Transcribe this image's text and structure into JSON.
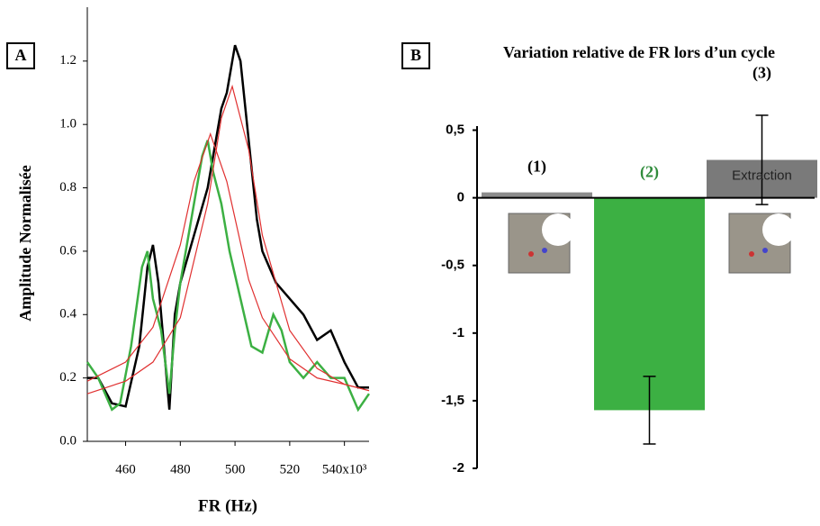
{
  "chart_data": [
    {
      "type": "line",
      "panel": "A",
      "xlabel": "FR (Hz)",
      "ylabel": "Amplitude Normalisée",
      "xlim": [
        446,
        549
      ],
      "ylim": [
        0,
        1.37
      ],
      "xticks": [
        460,
        480,
        500,
        520,
        {
          "value": 540,
          "label": "540x10³"
        }
      ],
      "yticks": [
        {
          "value": 0,
          "label": "0.0"
        },
        0.2,
        0.4,
        0.6,
        0.8,
        {
          "value": 1,
          "label": "1.0"
        },
        1.2
      ],
      "series": [
        {
          "color": "#000000",
          "x": [
            446,
            450,
            455,
            460,
            465,
            468,
            470,
            472,
            474,
            476,
            478,
            480,
            485,
            490,
            493,
            495,
            497,
            500,
            502,
            505,
            508,
            510,
            515,
            520,
            525,
            530,
            535,
            540,
            545,
            549
          ],
          "values": [
            0.2,
            0.2,
            0.12,
            0.11,
            0.3,
            0.55,
            0.62,
            0.5,
            0.3,
            0.1,
            0.4,
            0.5,
            0.65,
            0.8,
            0.95,
            1.05,
            1.1,
            1.25,
            1.2,
            0.95,
            0.7,
            0.6,
            0.5,
            0.45,
            0.4,
            0.32,
            0.35,
            0.25,
            0.17,
            0.17
          ]
        },
        {
          "color": "#3cb043",
          "x": [
            446,
            450,
            455,
            458,
            462,
            466,
            468,
            470,
            473,
            476,
            478,
            480,
            484,
            488,
            490,
            492,
            495,
            498,
            502,
            506,
            510,
            514,
            517,
            520,
            525,
            530,
            535,
            540,
            545,
            549
          ],
          "values": [
            0.25,
            0.2,
            0.1,
            0.12,
            0.3,
            0.55,
            0.6,
            0.45,
            0.35,
            0.15,
            0.35,
            0.5,
            0.7,
            0.9,
            0.95,
            0.85,
            0.75,
            0.6,
            0.45,
            0.3,
            0.28,
            0.4,
            0.35,
            0.25,
            0.2,
            0.25,
            0.2,
            0.2,
            0.1,
            0.15
          ]
        },
        {
          "color": "#e03030",
          "x": [
            446,
            460,
            470,
            480,
            490,
            495,
            499,
            505,
            510,
            520,
            530,
            540,
            549
          ],
          "values": [
            0.15,
            0.19,
            0.25,
            0.39,
            0.75,
            1.02,
            1.12,
            0.92,
            0.65,
            0.35,
            0.23,
            0.18,
            0.16
          ]
        },
        {
          "color": "#e03030",
          "x": [
            446,
            460,
            470,
            480,
            485,
            491,
            497,
            505,
            510,
            520,
            530,
            540,
            549
          ],
          "values": [
            0.19,
            0.25,
            0.36,
            0.62,
            0.82,
            0.97,
            0.82,
            0.51,
            0.39,
            0.26,
            0.2,
            0.18,
            0.16
          ]
        }
      ]
    },
    {
      "type": "bar",
      "panel": "B",
      "title": "Variation relative de FR lors d’un cycle",
      "categories": [
        "(1)",
        "(2)",
        "(3)"
      ],
      "category_colors": [
        "#000000",
        "#2e8b3a",
        "#000000"
      ],
      "values": [
        0.04,
        -1.57,
        0.28
      ],
      "errors": [
        null,
        0.25,
        0.33
      ],
      "colors": [
        "#8c8c8c",
        "#3cb043",
        "#7a7a7a"
      ],
      "bar_text": [
        null,
        null,
        "Extraction"
      ],
      "ylim": [
        -2,
        0.53
      ],
      "yticks": [
        {
          "value": 0.5,
          "label": "0,5"
        },
        0,
        {
          "value": -0.5,
          "label": "-0,5"
        },
        -1,
        {
          "value": -1.5,
          "label": "-1,5"
        },
        -2
      ]
    }
  ]
}
